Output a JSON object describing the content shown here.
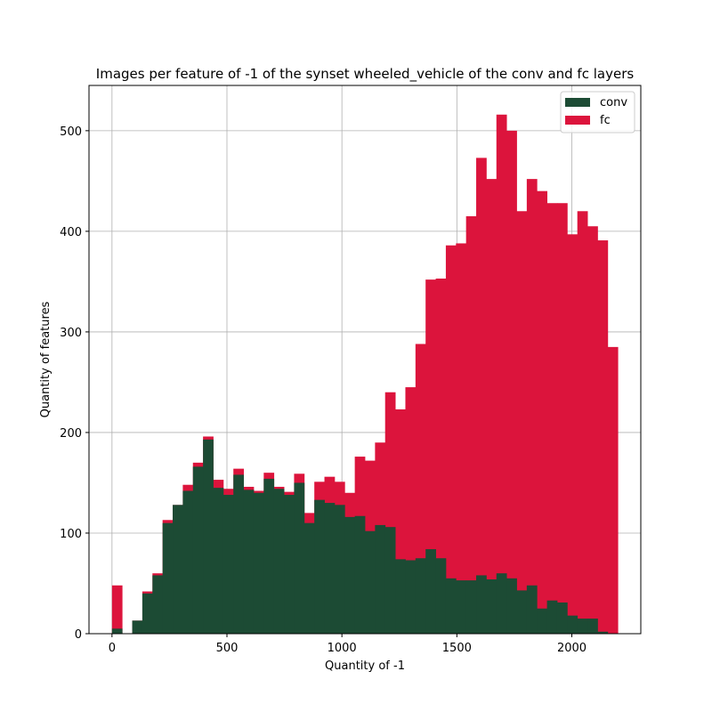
{
  "chart_data": {
    "type": "bar",
    "title": "Images per feature of -1 of the synset wheeled_vehicle of the conv and fc layers",
    "xlabel": "Quantity of -1",
    "ylabel": "Quantity of features",
    "xlim": [
      -100,
      2300
    ],
    "ylim": [
      0,
      545
    ],
    "xticks": [
      0,
      500,
      1000,
      1500,
      2000
    ],
    "yticks": [
      0,
      100,
      200,
      300,
      400,
      500
    ],
    "grid": true,
    "legend_position": "top-right",
    "bin_width": 44,
    "bin_start": 0,
    "series": [
      {
        "name": "conv",
        "color": "#1c4b34",
        "values": [
          5,
          0,
          13,
          40,
          58,
          110,
          128,
          142,
          166,
          193,
          145,
          138,
          158,
          143,
          140,
          154,
          144,
          138,
          150,
          110,
          133,
          130,
          128,
          116,
          117,
          102,
          108,
          106,
          74,
          73,
          75,
          84,
          75,
          55,
          53,
          53,
          58,
          54,
          60,
          55,
          43,
          48,
          25,
          33,
          31,
          18,
          15,
          15,
          2,
          0
        ]
      },
      {
        "name": "fc",
        "color": "#dc143c",
        "values": [
          48,
          0,
          13,
          42,
          60,
          113,
          128,
          148,
          170,
          196,
          153,
          144,
          164,
          146,
          142,
          160,
          146,
          141,
          159,
          120,
          151,
          156,
          151,
          140,
          176,
          172,
          190,
          240,
          223,
          245,
          288,
          352,
          353,
          386,
          388,
          415,
          473,
          452,
          516,
          500,
          420,
          452,
          440,
          428,
          428,
          397,
          420,
          405,
          391,
          285
        ]
      }
    ]
  }
}
